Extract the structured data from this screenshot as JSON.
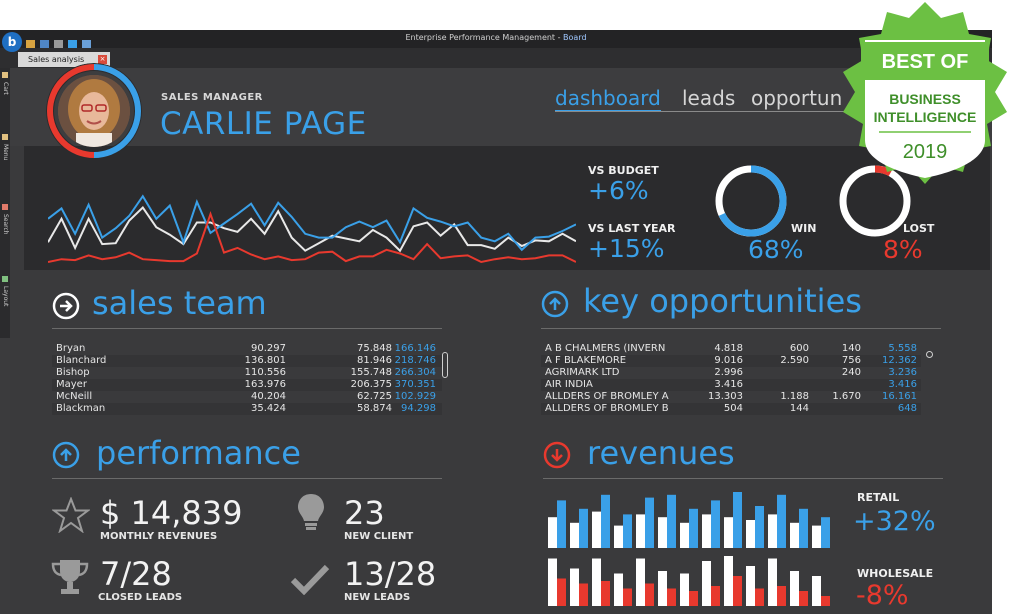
{
  "window": {
    "title": "Enterprise Performance Management - ",
    "brand": "Board",
    "tab": "Sales analysis",
    "tab_close": "×",
    "logo": "b"
  },
  "sidebar": [
    "Cart",
    "Menu",
    "Search",
    "Layout"
  ],
  "profile": {
    "role": "SALES MANAGER",
    "name": "CARLIE PAGE"
  },
  "nav": {
    "dashboard": "dashboard",
    "leads": "leads",
    "opportunities": "opportun"
  },
  "kpis": {
    "vs_budget_label": "VS BUDGET",
    "vs_budget_value": "+6%",
    "vs_last_year_label": "VS LAST YEAR",
    "vs_last_year_value": "+15%",
    "win_label": "WIN",
    "win_value": "68%",
    "win_fraction": 0.68,
    "lost_label": "LOST",
    "lost_value": "8%",
    "lost_fraction": 0.08
  },
  "sparkline": {
    "blue": [
      54,
      43,
      70,
      39,
      74,
      64,
      51,
      30,
      54,
      40,
      79,
      36,
      69,
      59,
      49,
      38,
      61,
      37,
      52,
      70,
      74,
      74,
      63,
      57,
      63,
      56,
      79,
      43,
      53,
      57,
      62,
      58,
      74,
      78,
      70,
      87,
      74,
      73,
      67,
      60
    ],
    "white": [
      79,
      54,
      85,
      54,
      81,
      80,
      56,
      42,
      63,
      71,
      81,
      58,
      58,
      64,
      68,
      54,
      70,
      46,
      74,
      88,
      80,
      72,
      75,
      78,
      66,
      74,
      88,
      62,
      58,
      72,
      60,
      82,
      82,
      86,
      74,
      83,
      77,
      78,
      70,
      78
    ],
    "red": [
      100,
      97,
      98,
      93,
      97,
      95,
      90,
      97,
      98,
      99,
      99,
      91,
      49,
      90,
      85,
      92,
      97,
      94,
      98,
      97,
      90,
      89,
      99,
      94,
      94,
      87,
      91,
      97,
      81,
      96,
      94,
      93,
      100,
      97,
      95,
      97,
      96,
      93,
      93,
      100
    ]
  },
  "sales_team": {
    "title": "sales team",
    "rows": [
      [
        "Bryan",
        "90.297",
        "75.848",
        "166.146"
      ],
      [
        "Blanchard",
        "136.801",
        "81.946",
        "218.746"
      ],
      [
        "Bishop",
        "110.556",
        "155.748",
        "266.304"
      ],
      [
        "Mayer",
        "163.976",
        "206.375",
        "370.351"
      ],
      [
        "McNeill",
        "40.204",
        "62.725",
        "102.929"
      ],
      [
        "Blackman",
        "35.424",
        "58.874",
        "94.298"
      ]
    ]
  },
  "key_opportunities": {
    "title": "key opportunities",
    "rows": [
      [
        "A B CHALMERS (INVERN",
        "4.818",
        "600",
        "140",
        "5.558"
      ],
      [
        "A F BLAKEMORE",
        "9.016",
        "2.590",
        "756",
        "12.362"
      ],
      [
        "AGRIMARK LTD",
        "2.996",
        "",
        "240",
        "3.236"
      ],
      [
        "AIR INDIA",
        "3.416",
        "",
        "",
        "3.416"
      ],
      [
        "ALLDERS OF BROMLEY A",
        "13.303",
        "1.188",
        "1.670",
        "16.161"
      ],
      [
        "ALLDERS OF BROMLEY B",
        "504",
        "144",
        "",
        "648"
      ]
    ]
  },
  "performance": {
    "title": "performance",
    "monthly_revenues_value": "$ 14,839",
    "monthly_revenues_label": "MONTHLY REVENUES",
    "new_client_value": "23",
    "new_client_label": "NEW CLIENT",
    "closed_leads_value": "7/28",
    "closed_leads_label": "CLOSED LEADS",
    "new_leads_value": "13/28",
    "new_leads_label": "NEW LEADS"
  },
  "revenues": {
    "title": "revenues",
    "retail_label": "RETAIL",
    "retail_value": "+32%",
    "wholesale_label": "WHOLESALE",
    "wholesale_value": "-8%",
    "retail_bars": [
      [
        0.55,
        0.85
      ],
      [
        0.45,
        0.7
      ],
      [
        0.65,
        0.95
      ],
      [
        0.4,
        0.6
      ],
      [
        0.6,
        0.9
      ],
      [
        0.55,
        0.95
      ],
      [
        0.45,
        0.7
      ],
      [
        0.6,
        0.85
      ],
      [
        0.55,
        1.0
      ],
      [
        0.5,
        0.75
      ],
      [
        0.6,
        0.95
      ],
      [
        0.45,
        0.7
      ],
      [
        0.4,
        0.55
      ]
    ],
    "wholesale_bars": [
      [
        0.95,
        0.55
      ],
      [
        0.75,
        0.45
      ],
      [
        0.95,
        0.5
      ],
      [
        0.65,
        0.35
      ],
      [
        0.95,
        0.45
      ],
      [
        0.7,
        0.35
      ],
      [
        0.65,
        0.3
      ],
      [
        0.9,
        0.4
      ],
      [
        1.0,
        0.6
      ],
      [
        0.8,
        0.35
      ],
      [
        0.95,
        0.4
      ],
      [
        0.7,
        0.3
      ],
      [
        0.6,
        0.2
      ]
    ]
  },
  "badge": {
    "line1": "BEST OF",
    "line2": "BUSINESS",
    "line3": "INTELLIGENCE",
    "year": "2019"
  },
  "colors": {
    "accent": "#3aa0e8",
    "red": "#e8392e",
    "bg": "#3a3a3c",
    "band": "#2b2b2d",
    "badge_green": "#6cc043"
  }
}
